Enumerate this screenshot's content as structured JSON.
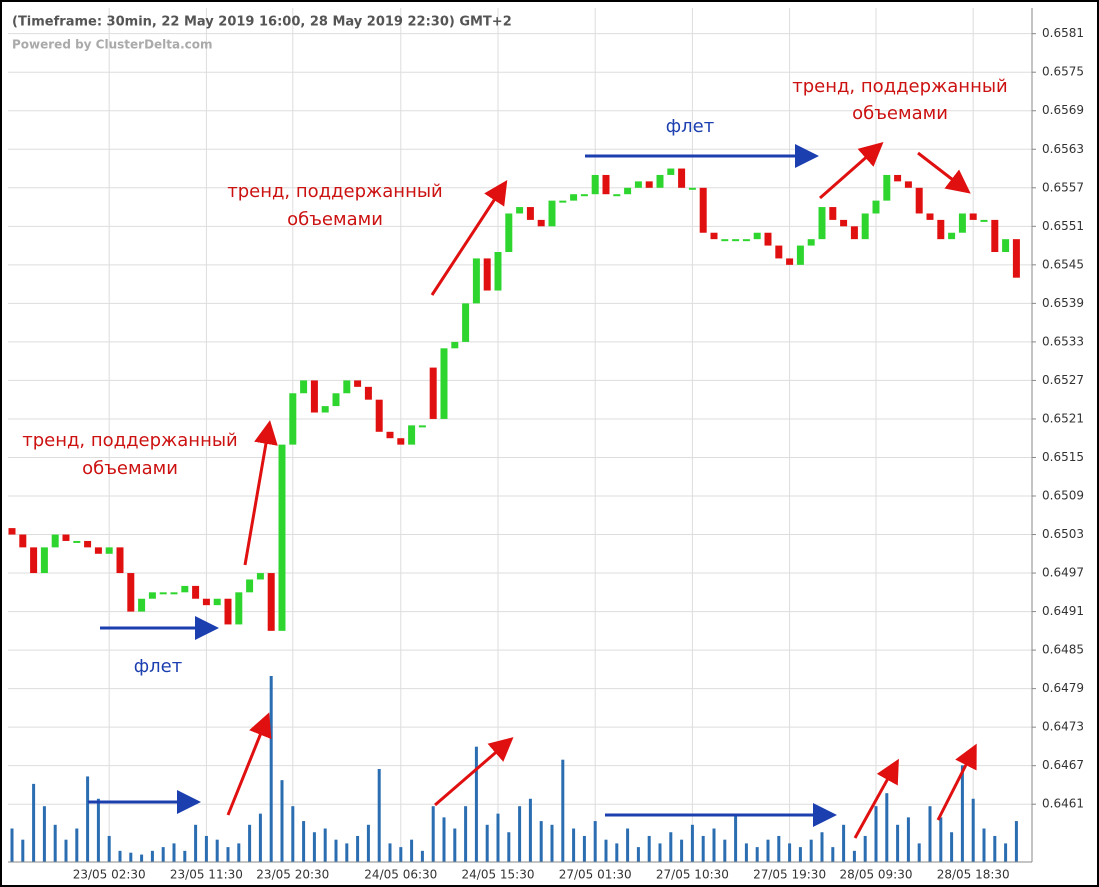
{
  "chart_data": {
    "type": "candlestick",
    "title": "(Timeframe: 30min, 22 May 2019 16:00, 28 May 2019 22:30) GMT+2",
    "subtitle": "Powered by ClusterDelta.com",
    "categories": [
      null,
      null,
      null,
      null,
      null,
      null,
      null,
      null,
      null,
      "23/05 02:30",
      null,
      null,
      null,
      null,
      null,
      null,
      null,
      null,
      "23/05 11:30",
      null,
      null,
      null,
      null,
      null,
      null,
      null,
      "23/05 20:30",
      null,
      null,
      null,
      null,
      null,
      null,
      null,
      null,
      null,
      "24/05 06:30",
      null,
      null,
      null,
      null,
      null,
      null,
      null,
      null,
      "24/05 15:30",
      null,
      null,
      null,
      null,
      null,
      null,
      null,
      null,
      "27/05 01:30",
      null,
      null,
      null,
      null,
      null,
      null,
      null,
      null,
      "27/05 10:30",
      null,
      null,
      null,
      null,
      null,
      null,
      null,
      null,
      "27/05 19:30",
      null,
      null,
      null,
      null,
      null,
      null,
      null,
      "28/05 09:30",
      null,
      null,
      null,
      null,
      null,
      null,
      null,
      null,
      "28/05 18:30",
      null,
      null,
      null,
      null
    ],
    "open": [
      0.6504,
      0.6503,
      0.6501,
      0.6497,
      0.6501,
      0.6503,
      0.6502,
      0.6502,
      0.6501,
      0.65,
      0.6501,
      0.6497,
      0.6491,
      0.6493,
      0.6494,
      0.6494,
      0.6494,
      0.6495,
      0.6493,
      0.6492,
      0.6493,
      0.6489,
      0.6494,
      0.6496,
      0.6497,
      0.6488,
      0.6517,
      0.6525,
      0.6527,
      0.6522,
      0.6523,
      0.6525,
      0.6527,
      0.6526,
      0.6524,
      0.6519,
      0.6518,
      0.6517,
      0.652,
      0.6529,
      0.6521,
      0.6532,
      0.6533,
      0.6539,
      0.6546,
      0.6541,
      0.6547,
      0.6553,
      0.6554,
      0.6552,
      0.6551,
      0.6555,
      0.6555,
      0.6556,
      0.6556,
      0.6559,
      0.6556,
      0.6556,
      0.6557,
      0.6558,
      0.6557,
      0.6559,
      0.656,
      0.6557,
      0.6557,
      0.655,
      0.6549,
      0.6549,
      0.6549,
      0.6549,
      0.655,
      0.6548,
      0.6546,
      0.6545,
      0.6548,
      0.6549,
      0.6554,
      0.6552,
      0.6551,
      0.6549,
      0.6553,
      0.6555,
      0.6559,
      0.6558,
      0.6557,
      0.6553,
      0.6552,
      0.6549,
      0.655,
      0.6553,
      0.6552,
      0.6552,
      0.6547,
      0.6549
    ],
    "close": [
      0.6503,
      0.6501,
      0.6497,
      0.6501,
      0.6503,
      0.6502,
      0.6502,
      0.6501,
      0.65,
      0.6501,
      0.6497,
      0.6491,
      0.6493,
      0.6494,
      0.6494,
      0.6494,
      0.6495,
      0.6493,
      0.6492,
      0.6493,
      0.6489,
      0.6494,
      0.6496,
      0.6497,
      0.6488,
      0.6517,
      0.6525,
      0.6527,
      0.6522,
      0.6523,
      0.6525,
      0.6527,
      0.6526,
      0.6524,
      0.6519,
      0.6518,
      0.6517,
      0.652,
      0.652,
      0.6521,
      0.6532,
      0.6533,
      0.6539,
      0.6546,
      0.6541,
      0.6547,
      0.6553,
      0.6554,
      0.6552,
      0.6551,
      0.6555,
      0.6555,
      0.6556,
      0.6556,
      0.6559,
      0.6556,
      0.6556,
      0.6557,
      0.6558,
      0.6557,
      0.6559,
      0.656,
      0.6557,
      0.6557,
      0.655,
      0.6549,
      0.6549,
      0.6549,
      0.6549,
      0.655,
      0.6548,
      0.6546,
      0.6545,
      0.6548,
      0.6549,
      0.6554,
      0.6552,
      0.6551,
      0.6549,
      0.6553,
      0.6555,
      0.6559,
      0.6558,
      0.6557,
      0.6553,
      0.6552,
      0.6549,
      0.655,
      0.6553,
      0.6552,
      0.6552,
      0.6547,
      0.6549,
      0.6543
    ],
    "volume": [
      18,
      12,
      42,
      30,
      20,
      12,
      18,
      46,
      34,
      14,
      6,
      5,
      4,
      6,
      8,
      10,
      6,
      20,
      14,
      12,
      8,
      10,
      20,
      26,
      100,
      44,
      30,
      22,
      16,
      18,
      12,
      10,
      14,
      20,
      50,
      10,
      8,
      12,
      6,
      30,
      24,
      18,
      30,
      62,
      20,
      26,
      16,
      30,
      34,
      22,
      20,
      55,
      18,
      14,
      22,
      12,
      10,
      18,
      8,
      14,
      10,
      16,
      12,
      20,
      14,
      18,
      12,
      25,
      10,
      8,
      12,
      14,
      10,
      8,
      12,
      16,
      8,
      20,
      6,
      14,
      30,
      37,
      20,
      24,
      10,
      30,
      24,
      16,
      52,
      34,
      18,
      14,
      10,
      22
    ],
    "up_color": "#2fd52f",
    "down_color": "#e01010",
    "volume_color": "#2a6db0",
    "ylim": [
      0.6452,
      0.6585
    ],
    "yticks": [
      0.6461,
      0.6467,
      0.6473,
      0.6479,
      0.6485,
      0.6491,
      0.6497,
      0.6503,
      0.6509,
      0.6515,
      0.6521,
      0.6527,
      0.6533,
      0.6539,
      0.6545,
      0.6551,
      0.6557,
      0.6563,
      0.6569,
      0.6575,
      0.6581
    ],
    "grid": true,
    "annotations": [
      {
        "lines": [
          "тренд, поддержанный",
          "объемами"
        ]
      },
      {
        "lines": [
          "тренд, поддержанный",
          "объемами"
        ]
      },
      {
        "lines": [
          "тренд, поддержанный",
          "объемами"
        ]
      },
      {
        "lines": [
          "флет"
        ]
      },
      {
        "lines": [
          "флет"
        ]
      }
    ]
  }
}
